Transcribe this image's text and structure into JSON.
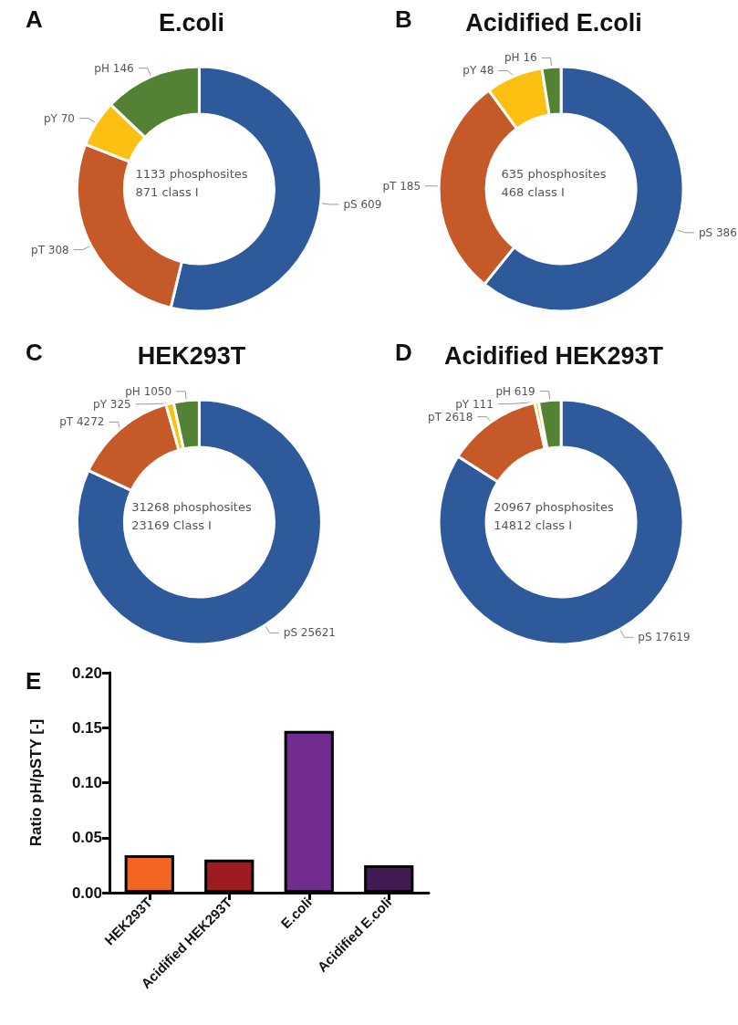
{
  "chart_data": [
    {
      "type": "donut",
      "title": "E.coli",
      "annotations": [
        "A",
        "1133 phosphosites",
        "871 class I"
      ],
      "categories": [
        "pS",
        "pT",
        "pY",
        "pH"
      ],
      "values": [
        609,
        308,
        70,
        146
      ],
      "colors": [
        "#2e5a9c",
        "#c55a28",
        "#fbc011",
        "#548235"
      ],
      "data_labels": true
    },
    {
      "type": "donut",
      "title": "Acidified E.coli",
      "annotations": [
        "B",
        "635 phosphosites",
        "468 class I"
      ],
      "categories": [
        "pS",
        "pT",
        "pY",
        "pH"
      ],
      "values": [
        386,
        185,
        48,
        16
      ],
      "colors": [
        "#2e5a9c",
        "#c55a28",
        "#fbc011",
        "#548235"
      ],
      "data_labels": true
    },
    {
      "type": "donut",
      "title": "HEK293T",
      "annotations": [
        "C",
        "31268 phosphosites",
        "23169 Class I"
      ],
      "categories": [
        "pS",
        "pT",
        "pY",
        "pH"
      ],
      "values": [
        25621,
        4272,
        325,
        1050
      ],
      "colors": [
        "#2e5a9c",
        "#c55a28",
        "#fbc011",
        "#548235"
      ],
      "data_labels": true
    },
    {
      "type": "donut",
      "title": "Acidified HEK293T",
      "annotations": [
        "D",
        "20967 phosphosites",
        "14812 class I"
      ],
      "categories": [
        "pS",
        "pT",
        "pY",
        "pH"
      ],
      "values": [
        17619,
        2618,
        111,
        619
      ],
      "colors": [
        "#2e5a9c",
        "#c55a28",
        "#fbc011",
        "#548235"
      ],
      "data_labels": true
    },
    {
      "type": "bar",
      "annotations": [
        "E"
      ],
      "ylabel": "Ratio pH/pSTY [-]",
      "categories": [
        "HEK293T",
        "Acidified HEK293T",
        "E.coli",
        "Acidified E.coli"
      ],
      "values": [
        0.034,
        0.03,
        0.147,
        0.025
      ],
      "colors": [
        "#f26522",
        "#9e1b20",
        "#722b8f",
        "#421b54"
      ],
      "ylim": [
        0,
        0.2
      ],
      "yticks": [
        {
          "value": 0,
          "label": "0.00"
        },
        {
          "value": 0.05,
          "label": "0.05"
        },
        {
          "value": 0.1,
          "label": "0.10"
        },
        {
          "value": 0.15,
          "label": "0.15"
        },
        {
          "value": 0.2,
          "label": "0.20"
        }
      ],
      "grid": false
    }
  ]
}
